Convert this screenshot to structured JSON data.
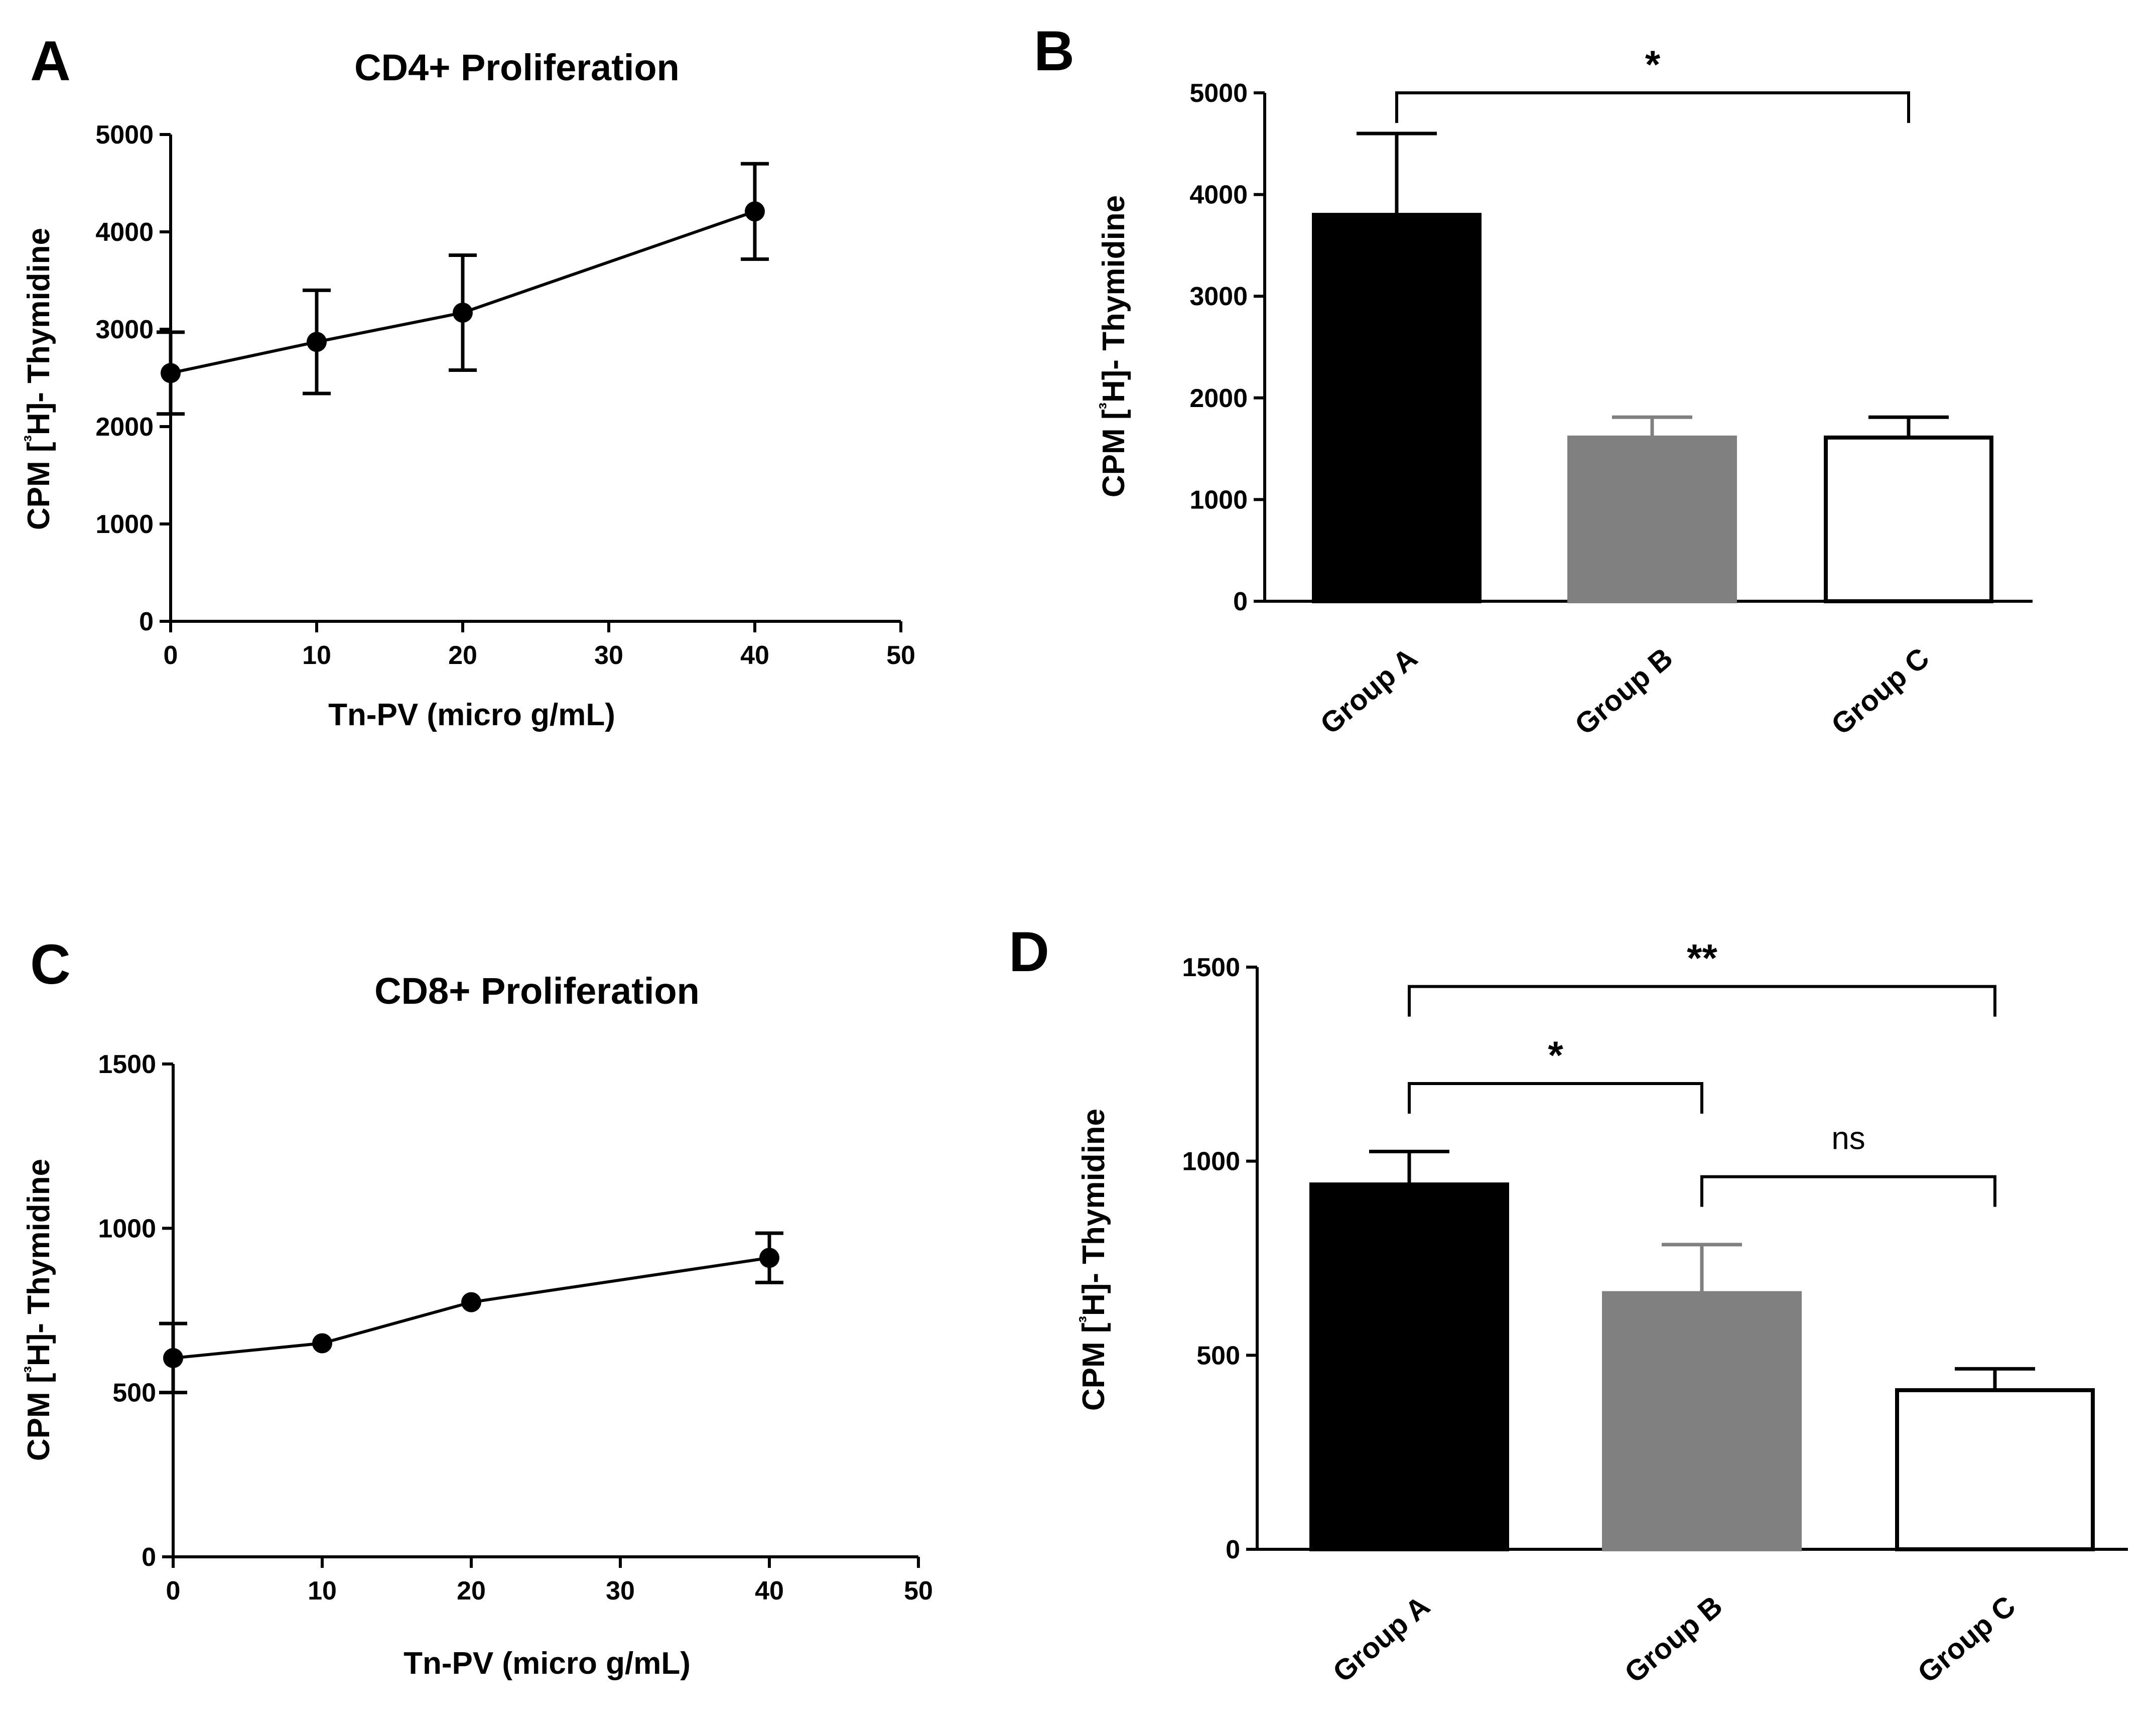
{
  "chart_data": [
    {
      "panel": "A",
      "type": "line",
      "title": "CD4+ Proliferation",
      "xlabel": "Tn-PV (micro g/mL)",
      "ylabel": "CPM [³H]- Thymidine",
      "xlim": [
        0,
        50
      ],
      "ylim": [
        0,
        5000
      ],
      "xticks": [
        0,
        10,
        20,
        30,
        40,
        50
      ],
      "yticks": [
        0,
        1000,
        2000,
        3000,
        4000,
        5000
      ],
      "points": [
        {
          "x": 0,
          "y": 2550,
          "err": 420
        },
        {
          "x": 10,
          "y": 2870,
          "err": 530
        },
        {
          "x": 20,
          "y": 3170,
          "err": 590
        },
        {
          "x": 40,
          "y": 4210,
          "err": 490
        }
      ]
    },
    {
      "panel": "B",
      "type": "bar",
      "xlabel": "",
      "ylabel": "CPM [³H]- Thymidine",
      "ylim": [
        0,
        5000
      ],
      "yticks": [
        0,
        1000,
        2000,
        3000,
        4000,
        5000
      ],
      "categories": [
        "Group A",
        "Group B",
        "Group C"
      ],
      "values": [
        3800,
        1610,
        1610
      ],
      "errors": [
        800,
        200,
        200
      ],
      "colors": [
        "#000000",
        "#808080",
        "#ffffff"
      ],
      "significance": [
        {
          "from": 0,
          "to": 2,
          "label": "*",
          "level": 5000
        }
      ]
    },
    {
      "panel": "C",
      "type": "line",
      "title": "CD8+ Proliferation",
      "xlabel": "Tn-PV (micro g/mL)",
      "ylabel": "CPM [³H]- Thymidine",
      "xlim": [
        0,
        50
      ],
      "ylim": [
        0,
        1500
      ],
      "xticks": [
        0,
        10,
        20,
        30,
        40,
        50
      ],
      "yticks": [
        0,
        500,
        1000,
        1500
      ],
      "points": [
        {
          "x": 0,
          "y": 605,
          "err": 105
        },
        {
          "x": 10,
          "y": 650,
          "err": 0
        },
        {
          "x": 20,
          "y": 775,
          "err": 0
        },
        {
          "x": 40,
          "y": 910,
          "err": 75
        }
      ]
    },
    {
      "panel": "D",
      "type": "bar",
      "xlabel": "",
      "ylabel": "CPM [³H]- Thymidine",
      "ylim": [
        0,
        1500
      ],
      "yticks": [
        0,
        500,
        1000,
        1500
      ],
      "categories": [
        "Group A",
        "Group B",
        "Group C"
      ],
      "values": [
        940,
        660,
        410
      ],
      "errors": [
        85,
        125,
        55
      ],
      "colors": [
        "#000000",
        "#808080",
        "#ffffff"
      ],
      "significance": [
        {
          "from": 0,
          "to": 2,
          "label": "**",
          "level": 1450
        },
        {
          "from": 0,
          "to": 1,
          "label": "*",
          "level": 1200
        },
        {
          "from": 1,
          "to": 2,
          "label": "ns",
          "level": 960
        }
      ]
    }
  ]
}
